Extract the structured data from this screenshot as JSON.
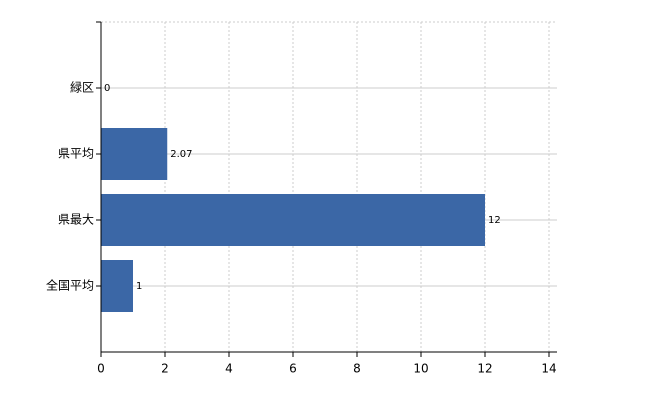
{
  "chart_data": {
    "type": "hbar",
    "categories": [
      "緑区",
      "県平均",
      "県最大",
      "全国平均"
    ],
    "values": [
      0,
      2.07,
      12,
      1
    ],
    "color": "#3b67a6",
    "xlim": [
      0,
      14.25
    ],
    "xticks": [
      0,
      2,
      4,
      6,
      8,
      10,
      12,
      14
    ],
    "grid": true
  }
}
